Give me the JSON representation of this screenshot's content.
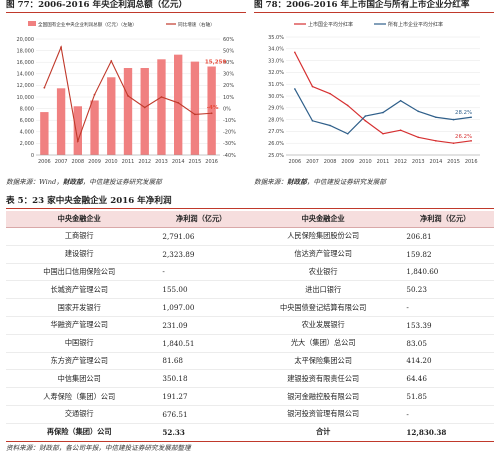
{
  "fig77": {
    "title": "图 77：2006-2016 年央企利润总额（亿元）",
    "source_label": "数据来源：",
    "source_body": "Wind，",
    "source_bold": "财政部",
    "source_tail": "，中信建投证券研究发展部",
    "colors": {
      "bar": "#f08080",
      "line": "#c0392b",
      "highlight": "#e74c3c"
    }
  },
  "fig78": {
    "title": "图 78：2006-2016 年上市国企与所有上市企业分红率",
    "source_label": "数据来源：",
    "source_bold": "财政部",
    "source_tail": "，中信建投证券研究发展部",
    "colors": {
      "soe": "#d63031",
      "all": "#2f5f8a"
    }
  },
  "chart_data": [
    {
      "type": "bar",
      "categories": [
        "2006",
        "2007",
        "2008",
        "2009",
        "2010",
        "2011",
        "2012",
        "2013",
        "2014",
        "2015",
        "2016"
      ],
      "series": [
        {
          "name": "全国国有企业中央企业利润总额（亿元）（左轴）",
          "type": "bar",
          "axis": "left",
          "values": [
            7400,
            11500,
            8400,
            9400,
            13400,
            15000,
            15000,
            16500,
            17300,
            16100,
            15259
          ]
        },
        {
          "name": "同比增速（右轴）",
          "type": "line",
          "axis": "right",
          "values": [
            18,
            53,
            -28,
            12,
            41,
            11,
            1,
            10,
            5,
            -5,
            -4
          ]
        }
      ],
      "annotations": [
        {
          "text": "15,259",
          "category": "2016",
          "series": 0
        },
        {
          "text": "-4%",
          "category": "2016",
          "series": 1
        }
      ],
      "ylim_left": [
        0,
        20000
      ],
      "yticks_left": [
        0,
        2000,
        4000,
        6000,
        8000,
        10000,
        12000,
        14000,
        16000,
        18000,
        20000
      ],
      "ylim_right": [
        -40,
        60
      ],
      "yticks_right": [
        -40,
        -30,
        -20,
        -10,
        0,
        10,
        20,
        30,
        40,
        50,
        60
      ],
      "tick_labels_right": [
        "-40%",
        "-30%",
        "-20%",
        "-10%",
        "0%",
        "10%",
        "20%",
        "30%",
        "40%",
        "50%",
        "60%"
      ],
      "legend": "top",
      "grid": true
    },
    {
      "type": "line",
      "categories": [
        "2006",
        "2007",
        "2008",
        "2009",
        "2010",
        "2011",
        "2012",
        "2013",
        "2014",
        "2015",
        "2016"
      ],
      "series": [
        {
          "name": "上市国企平均分红率",
          "values": [
            33.7,
            30.8,
            30.2,
            29.2,
            27.9,
            26.8,
            27.1,
            26.5,
            26.2,
            26.0,
            26.2
          ]
        },
        {
          "name": "所有上市企业平均分红率",
          "values": [
            30.6,
            27.9,
            27.5,
            26.8,
            28.3,
            28.6,
            29.6,
            28.7,
            28.2,
            28.0,
            28.2
          ]
        }
      ],
      "annotations": [
        {
          "text": "28.2%",
          "category": "2016",
          "series": 1
        },
        {
          "text": "26.2%",
          "category": "2016",
          "series": 0
        }
      ],
      "ylim": [
        25,
        35
      ],
      "yticks": [
        25,
        26,
        27,
        28,
        29,
        30,
        31,
        32,
        33,
        34,
        35
      ],
      "tick_labels": [
        "25.0%",
        "26.0%",
        "27.0%",
        "28.0%",
        "29.0%",
        "30.0%",
        "31.0%",
        "32.0%",
        "33.0%",
        "34.0%",
        "35.0%"
      ],
      "legend": "top",
      "grid": true
    }
  ],
  "table5": {
    "title": "表 5：23 家中央金融企业 2016 年净利润",
    "headers": [
      "中央金融企业",
      "净利润（亿元）",
      "中央金融企业",
      "净利润（亿元）"
    ],
    "rows": [
      [
        "工商银行",
        "2,791.06",
        "人民保险集团股份公司",
        "206.81"
      ],
      [
        "建设银行",
        "2,323.89",
        "信达资产管理公司",
        "159.82"
      ],
      [
        "中国出口信用保险公司",
        "-",
        "农业银行",
        "1,840.60"
      ],
      [
        "长城资产管理公司",
        "155.00",
        "进出口银行",
        "50.23"
      ],
      [
        "国家开发银行",
        "1,097.00",
        "中央国债登记结算有限公司",
        "-"
      ],
      [
        "华融资产管理公司",
        "231.09",
        "农业发展银行",
        "153.39"
      ],
      [
        "中国银行",
        "1,840.51",
        "光大（集团）总公司",
        "83.05"
      ],
      [
        "东方资产管理公司",
        "81.68",
        "太平保险集团公司",
        "414.20"
      ],
      [
        "中信集团公司",
        "350.18",
        "建银投资有限责任公司",
        "64.46"
      ],
      [
        "人寿保险（集团）公司",
        "191.27",
        "银河金融控股有限公司",
        "51.85"
      ],
      [
        "交通银行",
        "676.51",
        "银河投资管理有限公司",
        "-"
      ],
      [
        "再保险（集团）公司",
        "52.33",
        "合计",
        "12,830.38"
      ]
    ],
    "source": "资料来源：财政部，各公司年报，中信建投证券研究发展部整理"
  }
}
